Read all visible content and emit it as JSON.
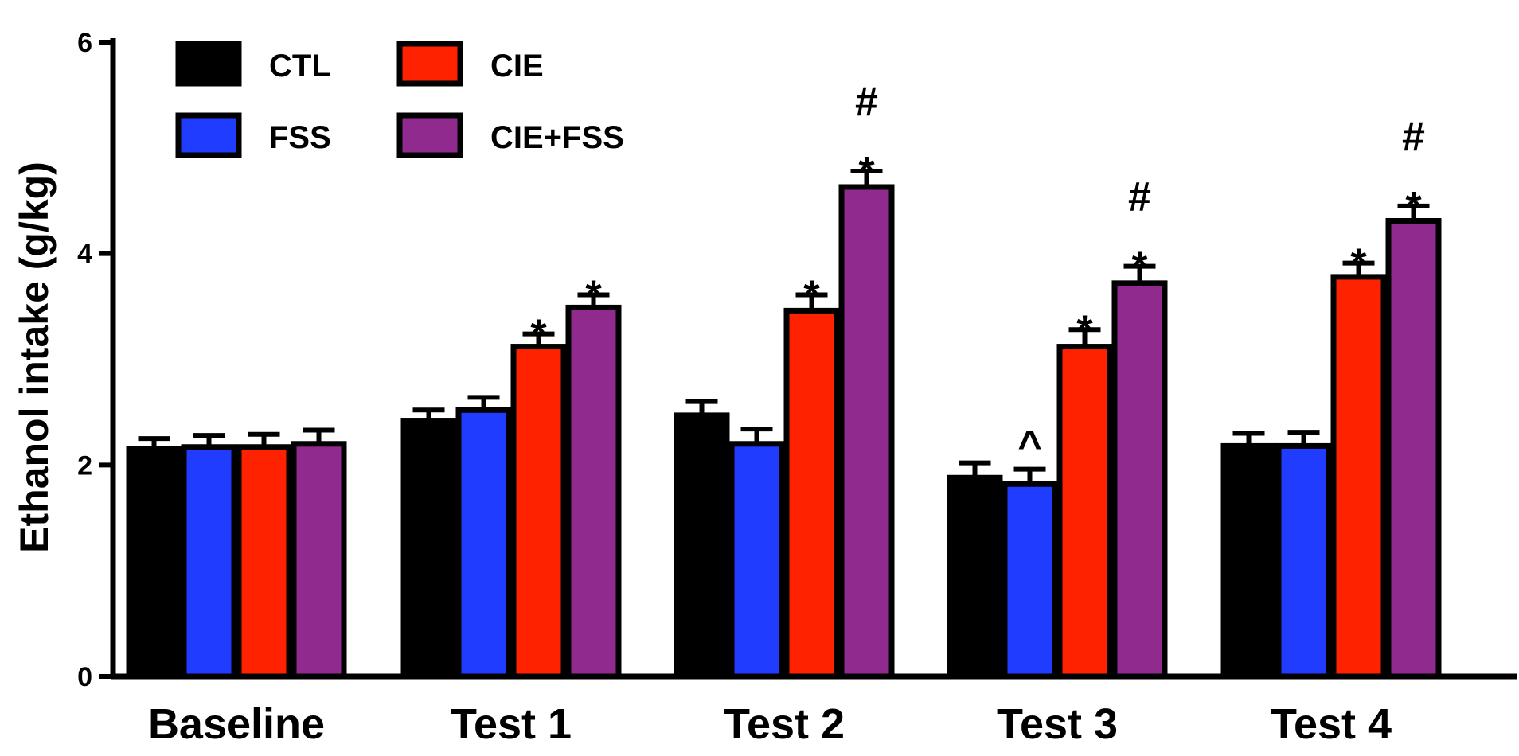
{
  "chart_data": {
    "type": "bar",
    "title": "",
    "xlabel": "",
    "ylabel": "Ethanol intake (g/kg)",
    "ylim": [
      0,
      6
    ],
    "yticks": [
      "0",
      "2",
      "4",
      "6"
    ],
    "grid": false,
    "legend_position": "top-left",
    "categories": [
      "Baseline",
      "Test 1",
      "Test 2",
      "Test 3",
      "Test 4"
    ],
    "series": [
      {
        "name": "CTL",
        "color": "#000000",
        "values": [
          2.15,
          2.42,
          2.47,
          1.88,
          2.18
        ],
        "errors": [
          0.1,
          0.1,
          0.13,
          0.14,
          0.12
        ],
        "annotations": [
          "",
          "",
          "",
          "",
          ""
        ]
      },
      {
        "name": "FSS",
        "color": "#1f3cff",
        "values": [
          2.17,
          2.52,
          2.2,
          1.82,
          2.18
        ],
        "errors": [
          0.11,
          0.12,
          0.14,
          0.14,
          0.13
        ],
        "annotations": [
          "",
          "",
          "",
          "^",
          ""
        ]
      },
      {
        "name": "CIE",
        "color": "#ff2200",
        "values": [
          2.17,
          3.12,
          3.46,
          3.12,
          3.78
        ],
        "errors": [
          0.12,
          0.12,
          0.15,
          0.16,
          0.13
        ],
        "annotations": [
          "",
          "*",
          "*",
          "*",
          "*"
        ]
      },
      {
        "name": "CIE+FSS",
        "color": "#912a8f",
        "values": [
          2.2,
          3.49,
          4.63,
          3.72,
          4.31
        ],
        "errors": [
          0.13,
          0.12,
          0.15,
          0.16,
          0.14
        ],
        "annotations": [
          "",
          "*",
          "*\n#",
          "*\n#",
          "*\n#"
        ]
      }
    ]
  }
}
